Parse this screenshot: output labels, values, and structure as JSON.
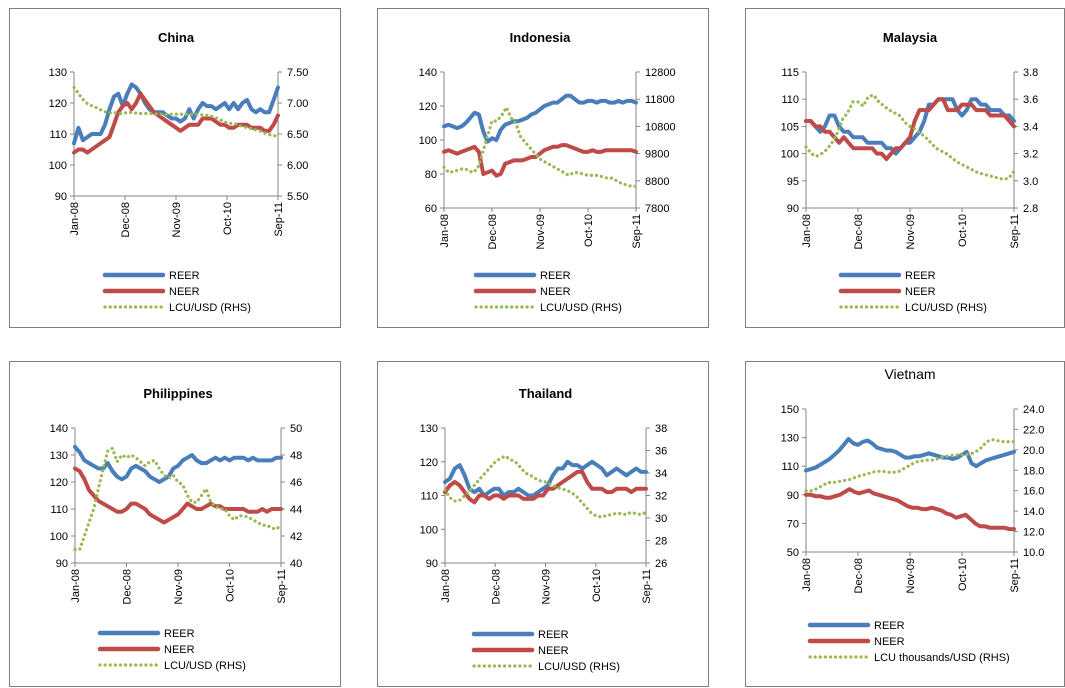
{
  "colors": {
    "reer": "#4a7ebb",
    "neer": "#be4b48",
    "lcu": "#98b954",
    "axis": "#868686"
  },
  "legend": {
    "reer": "REER",
    "neer": "NEER",
    "lcu": "LCU/USD (RHS)",
    "lcu_vietnam": "LCU thousands/USD (RHS)"
  },
  "x_ticks": [
    "Jan-08",
    "Dec-08",
    "Nov-09",
    "Oct-10",
    "Sep-11"
  ],
  "chart_data": [
    {
      "type": "line",
      "title": "China",
      "x_start": "Jan-08",
      "x_end": "Sep-11",
      "x_ticks": [
        "Jan-08",
        "Dec-08",
        "Nov-09",
        "Oct-10",
        "Sep-11"
      ],
      "ylim": [
        90,
        130
      ],
      "y_ticks": [
        "90",
        "100",
        "110",
        "120",
        "130"
      ],
      "y2lim": [
        5.5,
        7.5
      ],
      "y2_ticks": [
        "5.50",
        "6.00",
        "6.50",
        "7.00",
        "7.50"
      ],
      "series": [
        {
          "name": "REER",
          "axis": "left",
          "style": "solid",
          "values": [
            107,
            112,
            108,
            109,
            110,
            110,
            110,
            113,
            118,
            122,
            123,
            119,
            123,
            126,
            125,
            123,
            120,
            118,
            117,
            117,
            117,
            116,
            115,
            115,
            114,
            115,
            118,
            115,
            118,
            120,
            119,
            119,
            118,
            119,
            120,
            118,
            120,
            118,
            120,
            121,
            118,
            117,
            118,
            117,
            117,
            121,
            125
          ]
        },
        {
          "name": "NEER",
          "axis": "left",
          "style": "solid",
          "values": [
            104,
            105,
            105,
            104,
            105,
            106,
            107,
            108,
            109,
            113,
            117,
            119,
            120,
            118,
            120,
            123,
            121,
            119,
            117,
            116,
            115,
            114,
            113,
            112,
            111,
            112,
            113,
            113,
            113,
            115,
            115,
            115,
            114,
            113,
            113,
            112,
            112,
            113,
            113,
            113,
            112,
            112,
            112,
            111,
            111,
            113,
            116
          ]
        },
        {
          "name": "LCU/USD (RHS)",
          "axis": "right",
          "style": "dotted",
          "values": [
            7.25,
            7.15,
            7.05,
            6.98,
            6.95,
            6.92,
            6.88,
            6.85,
            6.84,
            6.84,
            6.83,
            6.84,
            6.85,
            6.84,
            6.83,
            6.83,
            6.83,
            6.83,
            6.82,
            6.82,
            6.82,
            6.82,
            6.82,
            6.82,
            6.82,
            6.82,
            6.82,
            6.82,
            6.8,
            6.8,
            6.78,
            6.75,
            6.71,
            6.68,
            6.67,
            6.66,
            6.63,
            6.61,
            6.59,
            6.57,
            6.55,
            6.52,
            6.49,
            6.48,
            6.45
          ]
        }
      ]
    },
    {
      "type": "line",
      "title": "Indonesia",
      "x_start": "Jan-08",
      "x_end": "Sep-11",
      "x_ticks": [
        "Jan-08",
        "Dec-08",
        "Nov-09",
        "Oct-10",
        "Sep-11"
      ],
      "ylim": [
        60,
        140
      ],
      "y_ticks": [
        "60",
        "80",
        "100",
        "120",
        "140"
      ],
      "y2lim": [
        7800,
        12800
      ],
      "y2_ticks": [
        "7800",
        "8800",
        "9800",
        "10800",
        "11800",
        "12800"
      ],
      "series": [
        {
          "name": "REER",
          "axis": "left",
          "style": "solid",
          "values": [
            108,
            109,
            108,
            107,
            108,
            110,
            113,
            116,
            115,
            105,
            99,
            101,
            100,
            106,
            109,
            110,
            111,
            111,
            112,
            113,
            115,
            116,
            118,
            120,
            121,
            122,
            122,
            124,
            126,
            126,
            124,
            122,
            122,
            123,
            123,
            122,
            123,
            123,
            122,
            122,
            123,
            122,
            123,
            123,
            122
          ]
        },
        {
          "name": "NEER",
          "axis": "left",
          "style": "solid",
          "values": [
            93,
            94,
            93,
            92,
            93,
            94,
            95,
            96,
            93,
            80,
            81,
            82,
            79,
            80,
            86,
            87,
            88,
            88,
            88,
            89,
            90,
            90,
            92,
            94,
            95,
            96,
            96,
            97,
            97,
            96,
            95,
            94,
            93,
            93,
            94,
            93,
            93,
            94,
            94,
            94,
            94,
            94,
            94,
            94,
            93
          ]
        },
        {
          "name": "LCU/USD (RHS)",
          "axis": "right",
          "style": "dotted",
          "values": [
            9300,
            9100,
            9150,
            9200,
            9250,
            9200,
            9100,
            9250,
            9800,
            10400,
            11000,
            11000,
            11200,
            11500,
            11100,
            10900,
            10400,
            10200,
            10000,
            9800,
            9600,
            9500,
            9400,
            9300,
            9200,
            9100,
            9000,
            9100,
            9100,
            9050,
            9000,
            9000,
            9000,
            8950,
            8900,
            8900,
            8800,
            8700,
            8650,
            8600,
            8600
          ]
        }
      ]
    },
    {
      "type": "line",
      "title": "Malaysia",
      "x_start": "Jan-08",
      "x_end": "Sep-11",
      "x_ticks": [
        "Jan-08",
        "Dec-08",
        "Nov-09",
        "Oct-10",
        "Sep-11"
      ],
      "ylim": [
        90,
        115
      ],
      "y_ticks": [
        "90",
        "95",
        "100",
        "105",
        "110",
        "115"
      ],
      "y2lim": [
        2.8,
        3.8
      ],
      "y2_ticks": [
        "2.8",
        "3.0",
        "3.2",
        "3.4",
        "3.6",
        "3.8"
      ],
      "series": [
        {
          "name": "REER",
          "axis": "left",
          "style": "solid",
          "values": [
            106,
            106,
            105,
            104,
            105,
            107,
            107,
            105,
            104,
            104,
            103,
            103,
            103,
            102,
            102,
            102,
            102,
            101,
            101,
            100,
            101,
            102,
            102,
            103,
            104,
            106,
            109,
            109,
            110,
            110,
            110,
            110,
            108,
            107,
            108,
            110,
            110,
            109,
            109,
            108,
            108,
            108,
            107,
            107,
            106
          ]
        },
        {
          "name": "NEER",
          "axis": "left",
          "style": "solid",
          "values": [
            106,
            106,
            105,
            105,
            104,
            104,
            103,
            102,
            103,
            102,
            101,
            101,
            101,
            101,
            101,
            100,
            100,
            99,
            100,
            101,
            101,
            102,
            103,
            106,
            108,
            108,
            108,
            109,
            110,
            110,
            108,
            108,
            108,
            109,
            109,
            109,
            108,
            108,
            108,
            107,
            107,
            107,
            107,
            106,
            105
          ]
        },
        {
          "name": "LCU/USD (RHS)",
          "axis": "right",
          "style": "dotted",
          "values": [
            3.25,
            3.2,
            3.18,
            3.2,
            3.23,
            3.28,
            3.35,
            3.45,
            3.5,
            3.58,
            3.58,
            3.55,
            3.62,
            3.63,
            3.58,
            3.55,
            3.52,
            3.5,
            3.48,
            3.43,
            3.4,
            3.38,
            3.35,
            3.32,
            3.28,
            3.24,
            3.22,
            3.2,
            3.17,
            3.14,
            3.12,
            3.1,
            3.08,
            3.06,
            3.05,
            3.04,
            3.03,
            3.02,
            3.01,
            3.02,
            3.07
          ]
        }
      ]
    },
    {
      "type": "line",
      "title": "Philippines",
      "x_start": "Jan-08",
      "x_end": "Sep-11",
      "x_ticks": [
        "Jan-08",
        "Dec-08",
        "Nov-09",
        "Oct-10",
        "Sep-11"
      ],
      "ylim": [
        90,
        140
      ],
      "y_ticks": [
        "90",
        "100",
        "110",
        "120",
        "130",
        "140"
      ],
      "y2lim": [
        40,
        50
      ],
      "y2_ticks": [
        "40",
        "42",
        "44",
        "46",
        "48",
        "50"
      ],
      "series": [
        {
          "name": "REER",
          "axis": "left",
          "style": "solid",
          "values": [
            133,
            131,
            128,
            127,
            126,
            125,
            125,
            127,
            124,
            122,
            121,
            122,
            125,
            126,
            125,
            124,
            122,
            121,
            120,
            121,
            122,
            125,
            126,
            128,
            129,
            130,
            128,
            127,
            127,
            128,
            129,
            128,
            129,
            128,
            129,
            129,
            129,
            128,
            129,
            128,
            128,
            128,
            128,
            129,
            129
          ]
        },
        {
          "name": "NEER",
          "axis": "left",
          "style": "solid",
          "values": [
            125,
            124,
            121,
            117,
            115,
            113,
            112,
            111,
            110,
            109,
            109,
            110,
            112,
            112,
            111,
            110,
            108,
            107,
            106,
            105,
            106,
            107,
            108,
            110,
            112,
            111,
            110,
            110,
            111,
            112,
            111,
            111,
            110,
            110,
            110,
            110,
            110,
            109,
            109,
            109,
            110,
            109,
            110,
            110,
            110
          ]
        },
        {
          "name": "LCU/USD (RHS)",
          "axis": "right",
          "style": "dotted",
          "values": [
            41,
            41,
            42,
            43,
            44,
            45.5,
            47,
            48.3,
            48.5,
            47.5,
            48,
            47.8,
            48,
            47.8,
            47.5,
            47.2,
            47.5,
            47.6,
            47,
            46.5,
            46.3,
            46.5,
            46,
            45.8,
            45,
            44.5,
            44.5,
            45,
            45.5,
            44.5,
            44.2,
            44,
            44,
            43.5,
            43.2,
            43.5,
            43.5,
            43.4,
            43.2,
            43,
            42.8,
            42.8,
            42.6,
            42.5,
            42.8
          ]
        }
      ]
    },
    {
      "type": "line",
      "title": "Thailand",
      "x_start": "Jan-08",
      "x_end": "Sep-11",
      "x_ticks": [
        "Jan-08",
        "Dec-08",
        "Nov-09",
        "Oct-10",
        "Sep-11"
      ],
      "ylim": [
        90,
        130
      ],
      "y_ticks": [
        "90",
        "100",
        "110",
        "120",
        "130"
      ],
      "y2lim": [
        26,
        38
      ],
      "y2_ticks": [
        "26",
        "28",
        "30",
        "32",
        "34",
        "36",
        "38"
      ],
      "series": [
        {
          "name": "REER",
          "axis": "left",
          "style": "solid",
          "values": [
            114,
            115,
            118,
            119,
            116,
            112,
            111,
            112,
            110,
            111,
            112,
            112,
            110,
            111,
            111,
            112,
            111,
            110,
            110,
            111,
            112,
            113,
            116,
            118,
            118,
            120,
            119,
            119,
            118,
            119,
            120,
            119,
            118,
            116,
            117,
            118,
            117,
            116,
            117,
            118,
            117,
            117
          ]
        },
        {
          "name": "NEER",
          "axis": "left",
          "style": "solid",
          "values": [
            111,
            113,
            114,
            113,
            111,
            109,
            108,
            110,
            110,
            109,
            110,
            110,
            109,
            110,
            110,
            110,
            109,
            109,
            109,
            110,
            110,
            112,
            112,
            113,
            114,
            115,
            116,
            117,
            117,
            114,
            112,
            112,
            112,
            111,
            111,
            112,
            112,
            112,
            111,
            112,
            112,
            112
          ]
        },
        {
          "name": "LCU/USD (RHS)",
          "axis": "right",
          "style": "dotted",
          "values": [
            32.5,
            31.8,
            31.5,
            31.6,
            32,
            32.5,
            33,
            33.5,
            34,
            34.5,
            35,
            35.3,
            35.5,
            35.2,
            35,
            34.5,
            34,
            33.8,
            33.5,
            33.3,
            33.2,
            33,
            32.8,
            32.6,
            32.5,
            32.3,
            32,
            31.5,
            31,
            30.5,
            30.2,
            30.1,
            30.2,
            30.3,
            30.4,
            30.4,
            30.3,
            30.5,
            30.4,
            30.3,
            30.5
          ]
        }
      ]
    },
    {
      "type": "line",
      "title": "Vietnam",
      "x_start": "Jan-08",
      "x_end": "Sep-11",
      "x_ticks": [
        "Jan-08",
        "Dec-08",
        "Nov-09",
        "Oct-10",
        "Sep-11"
      ],
      "ylim": [
        50,
        150
      ],
      "y_ticks": [
        "50",
        "70",
        "90",
        "110",
        "130",
        "150"
      ],
      "y2lim": [
        10,
        24
      ],
      "y2_ticks": [
        "10.0",
        "12.0",
        "14.0",
        "16.0",
        "18.0",
        "20.0",
        "22.0",
        "24.0"
      ],
      "series": [
        {
          "name": "REER",
          "axis": "left",
          "style": "solid",
          "values": [
            107,
            108,
            109,
            111,
            113,
            115,
            118,
            121,
            125,
            129,
            126,
            125,
            127,
            128,
            126,
            123,
            122,
            121,
            121,
            120,
            118,
            116,
            116,
            117,
            117,
            118,
            119,
            118,
            117,
            116,
            116,
            115,
            116,
            118,
            120,
            112,
            110,
            112,
            114,
            115,
            116,
            117,
            118,
            119,
            120
          ]
        },
        {
          "name": "NEER",
          "axis": "left",
          "style": "solid",
          "values": [
            90,
            90,
            89,
            89,
            88,
            88,
            89,
            90,
            92,
            94,
            92,
            91,
            92,
            93,
            91,
            90,
            89,
            88,
            87,
            86,
            84,
            82,
            81,
            81,
            80,
            80,
            81,
            80,
            79,
            77,
            76,
            74,
            75,
            76,
            73,
            70,
            68,
            68,
            67,
            67,
            67,
            67,
            66,
            66
          ]
        },
        {
          "name": "LCU thousands/USD (RHS)",
          "axis": "right",
          "style": "dotted",
          "values": [
            16,
            16,
            16.2,
            16.5,
            16.8,
            16.8,
            16.9,
            17,
            17.1,
            17.3,
            17.5,
            17.6,
            17.8,
            17.9,
            17.9,
            17.8,
            17.8,
            17.9,
            18.2,
            18.5,
            18.8,
            18.9,
            19,
            19,
            19.1,
            19.3,
            19.4,
            19.5,
            19.5,
            19.5,
            19.6,
            19.8,
            20.2,
            20.8,
            21,
            20.9,
            20.8,
            20.8,
            20.8
          ]
        }
      ]
    }
  ]
}
